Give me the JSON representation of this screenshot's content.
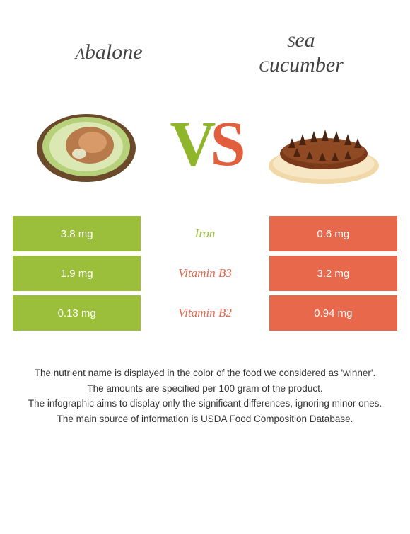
{
  "colors": {
    "left": "#9bbf3b",
    "right": "#e8684c",
    "background": "#ffffff",
    "text_footer": "#333333",
    "title_text": "#444444"
  },
  "foods": {
    "left": {
      "name": "Abalone",
      "small_cap": "A",
      "rest": "balone"
    },
    "right": {
      "line1_small": "S",
      "line1_rest": "ea",
      "line2_small": "C",
      "line2_rest": "ucumber",
      "full": "Sea cucumber"
    }
  },
  "vs": {
    "v": "V",
    "s": "S"
  },
  "nutrients": [
    {
      "name": "Iron",
      "left": "3.8 mg",
      "right": "0.6 mg",
      "winner": "left"
    },
    {
      "name": "Vitamin B3",
      "left": "1.9 mg",
      "right": "3.2 mg",
      "winner": "right"
    },
    {
      "name": "Vitamin B2",
      "left": "0.13 mg",
      "right": "0.94 mg",
      "winner": "right"
    }
  ],
  "notes": [
    "The nutrient name is displayed in the color of the food we considered as 'winner'.",
    "The amounts are specified per 100 gram of the product.",
    "The infographic aims to display only the significant differences, ignoring minor ones.",
    "The main source of information is USDA Food Composition Database."
  ]
}
